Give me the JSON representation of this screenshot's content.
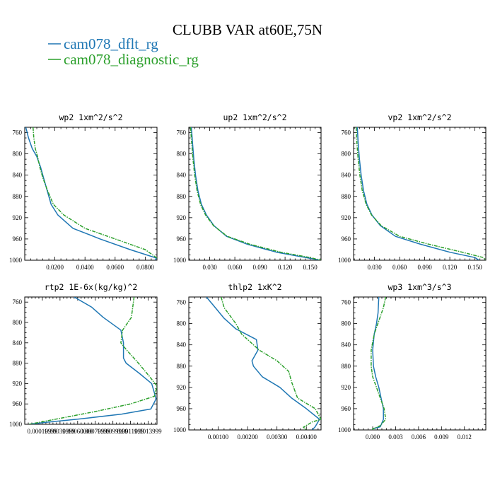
{
  "figure": {
    "title": "CLUBB VAR at60E,75N",
    "legend": [
      {
        "label": "cam078_dflt_rg",
        "color": "#1f77b4",
        "dash": false
      },
      {
        "label": "cam078_diagnostic_rg",
        "color": "#2ca02c",
        "dash": true
      }
    ]
  },
  "chart_data": [
    {
      "type": "line",
      "title": "wp2  1xm^2/s^2",
      "ylim": [
        1000,
        750
      ],
      "yticks": [
        760,
        800,
        840,
        880,
        920,
        960,
        1000
      ],
      "xlim": [
        0.0,
        0.0878
      ],
      "xticks": [
        0.02,
        0.04,
        0.06,
        0.08
      ],
      "xtick_labels": [
        "0.0200",
        "0.0400",
        "0.0600",
        "0.0800"
      ],
      "series": [
        {
          "name": "cam078_dflt_rg",
          "x": [
            0.0007,
            0.0025,
            0.005,
            0.008,
            0.0105,
            0.0125,
            0.0148,
            0.0175,
            0.022,
            0.032,
            0.05,
            0.07,
            0.0875,
            0.0865
          ],
          "y": [
            750,
            770,
            790,
            805,
            825,
            845,
            868,
            895,
            915,
            940,
            960,
            980,
            996,
            1000
          ]
        },
        {
          "name": "cam078_diagnostic_rg",
          "x": [
            0.0055,
            0.006,
            0.007,
            0.0085,
            0.01,
            0.012,
            0.015,
            0.019,
            0.026,
            0.04,
            0.06,
            0.08,
            0.0878
          ],
          "y": [
            750,
            770,
            790,
            805,
            825,
            845,
            868,
            895,
            915,
            940,
            960,
            980,
            996
          ]
        }
      ]
    },
    {
      "type": "line",
      "title": "up2  1xm^2/s^2",
      "ylim": [
        1000,
        750
      ],
      "yticks": [
        760,
        800,
        840,
        880,
        920,
        960,
        1000
      ],
      "xlim": [
        0.005,
        0.163
      ],
      "xticks": [
        0.03,
        0.06,
        0.09,
        0.12,
        0.15
      ],
      "xtick_labels": [
        "0.030",
        "0.060",
        "0.090",
        "0.120",
        "0.150"
      ],
      "series": [
        {
          "name": "cam078_dflt_rg",
          "x": [
            0.008,
            0.0095,
            0.011,
            0.013,
            0.016,
            0.02,
            0.026,
            0.035,
            0.05,
            0.075,
            0.11,
            0.145,
            0.162
          ],
          "y": [
            750,
            780,
            810,
            840,
            870,
            895,
            915,
            935,
            955,
            970,
            985,
            995,
            1000
          ]
        },
        {
          "name": "cam078_diagnostic_rg",
          "x": [
            0.007,
            0.0085,
            0.01,
            0.012,
            0.015,
            0.019,
            0.025,
            0.0345,
            0.051,
            0.078,
            0.115,
            0.15,
            0.163
          ],
          "y": [
            750,
            780,
            810,
            840,
            870,
            895,
            915,
            935,
            955,
            970,
            985,
            995,
            1000
          ]
        }
      ]
    },
    {
      "type": "line",
      "title": "vp2  1xm^2/s^2",
      "ylim": [
        1000,
        750
      ],
      "yticks": [
        760,
        800,
        840,
        880,
        920,
        960,
        1000
      ],
      "xlim": [
        0.005,
        0.163
      ],
      "xticks": [
        0.03,
        0.06,
        0.09,
        0.12,
        0.15
      ],
      "xtick_labels": [
        "0.030",
        "0.060",
        "0.090",
        "0.120",
        "0.150"
      ],
      "series": [
        {
          "name": "cam078_dflt_rg",
          "x": [
            0.0095,
            0.0105,
            0.012,
            0.014,
            0.017,
            0.021,
            0.027,
            0.037,
            0.055,
            0.085,
            0.12,
            0.15,
            0.155
          ],
          "y": [
            750,
            780,
            810,
            840,
            870,
            895,
            915,
            935,
            955,
            970,
            985,
            995,
            1000
          ]
        },
        {
          "name": "cam078_diagnostic_rg",
          "x": [
            0.008,
            0.009,
            0.0105,
            0.0125,
            0.0155,
            0.02,
            0.0265,
            0.038,
            0.06,
            0.095,
            0.135,
            0.16,
            0.163
          ],
          "y": [
            750,
            780,
            810,
            840,
            870,
            895,
            915,
            935,
            955,
            970,
            985,
            995,
            1000
          ]
        }
      ]
    },
    {
      "type": "line",
      "title": "rtp2  1E-6x(kg/kg)^2",
      "ylim": [
        1000,
        750
      ],
      "yticks": [
        760,
        800,
        840,
        880,
        920,
        960,
        1000
      ],
      "xlim": [
        0.0,
        1.5
      ],
      "xticks": [
        0.2,
        0.4,
        0.6,
        0.8,
        1.0,
        1.2,
        1.4
      ],
      "xtick_labels": [
        "0.00019999",
        "0.00039999",
        "0.00060000",
        "0.00079999",
        "0.00099999",
        "0.0011999",
        "0.0013999"
      ],
      "series": [
        {
          "name": "cam078_dflt_rg",
          "x": [
            0.56,
            0.76,
            0.89,
            1.09,
            1.12,
            1.12,
            1.15,
            1.3,
            1.44,
            1.49,
            1.43,
            1.1,
            0.6,
            0.25,
            0.05
          ],
          "y": [
            750,
            770,
            790,
            815,
            840,
            870,
            880,
            900,
            920,
            950,
            970,
            980,
            990,
            996,
            1000
          ]
        },
        {
          "name": "cam078_diagnostic_rg",
          "x": [
            1.24,
            1.21,
            1.11,
            1.09,
            1.16,
            1.29,
            1.41,
            1.5,
            1.47,
            1.2,
            0.8,
            0.35,
            0.05
          ],
          "y": [
            750,
            790,
            815,
            840,
            855,
            880,
            905,
            925,
            945,
            960,
            975,
            990,
            1000
          ]
        }
      ]
    },
    {
      "type": "line",
      "title": "thlp2  1xK^2",
      "ylim": [
        1000,
        750
      ],
      "yticks": [
        760,
        800,
        840,
        880,
        920,
        960,
        1000
      ],
      "xlim": [
        0.0,
        0.0045
      ],
      "xticks": [
        0.001,
        0.002,
        0.003,
        0.004
      ],
      "xtick_labels": [
        "0.00100",
        "0.00200",
        "0.00300",
        "0.00400"
      ],
      "series": [
        {
          "name": "cam078_dflt_rg",
          "x": [
            0.0006,
            0.0009,
            0.0012,
            0.0016,
            0.0023,
            0.00235,
            0.00215,
            0.0022,
            0.0025,
            0.0031,
            0.0035,
            0.004,
            0.00445,
            0.0043,
            0.0042
          ],
          "y": [
            750,
            770,
            790,
            810,
            830,
            850,
            870,
            880,
            900,
            920,
            940,
            960,
            980,
            994,
            1000
          ]
        },
        {
          "name": "cam078_diagnostic_rg",
          "x": [
            0.0011,
            0.0012,
            0.0016,
            0.0018,
            0.0024,
            0.003,
            0.0034,
            0.0035,
            0.0037,
            0.0043,
            0.0045,
            0.0042,
            0.0039,
            0.004
          ],
          "y": [
            750,
            770,
            800,
            820,
            850,
            870,
            890,
            910,
            940,
            960,
            980,
            985,
            995,
            1000
          ]
        }
      ]
    },
    {
      "type": "line",
      "title": "wp3  1xm^3/s^3",
      "ylim": [
        1000,
        750
      ],
      "yticks": [
        760,
        800,
        840,
        880,
        920,
        960,
        1000
      ],
      "xlim": [
        -0.0025,
        0.0148
      ],
      "xticks": [
        0.0,
        0.003,
        0.006,
        0.009,
        0.012
      ],
      "xtick_labels": [
        "0.000",
        "0.003",
        "0.006",
        "0.009",
        "0.012"
      ],
      "series": [
        {
          "name": "cam078_dflt_rg",
          "x": [
            0.0008,
            0.0007,
            0.0005,
            0.0002,
            0.0,
            0.0001,
            0.0004,
            0.0008,
            0.0011,
            0.0014,
            0.0014,
            0.001,
            0.0,
            0.0
          ],
          "y": [
            750,
            780,
            800,
            820,
            850,
            880,
            900,
            920,
            940,
            960,
            980,
            994,
            998,
            1000
          ]
        },
        {
          "name": "cam078_diagnostic_rg",
          "x": [
            0.0017,
            0.0014,
            0.0008,
            0.0002,
            -0.0002,
            -0.0002,
            0.0,
            0.0005,
            0.001,
            0.0015,
            0.0017,
            0.001,
            0.0,
            0.0
          ],
          "y": [
            750,
            770,
            795,
            820,
            850,
            880,
            900,
            920,
            940,
            960,
            980,
            992,
            998,
            1000
          ]
        }
      ]
    }
  ]
}
